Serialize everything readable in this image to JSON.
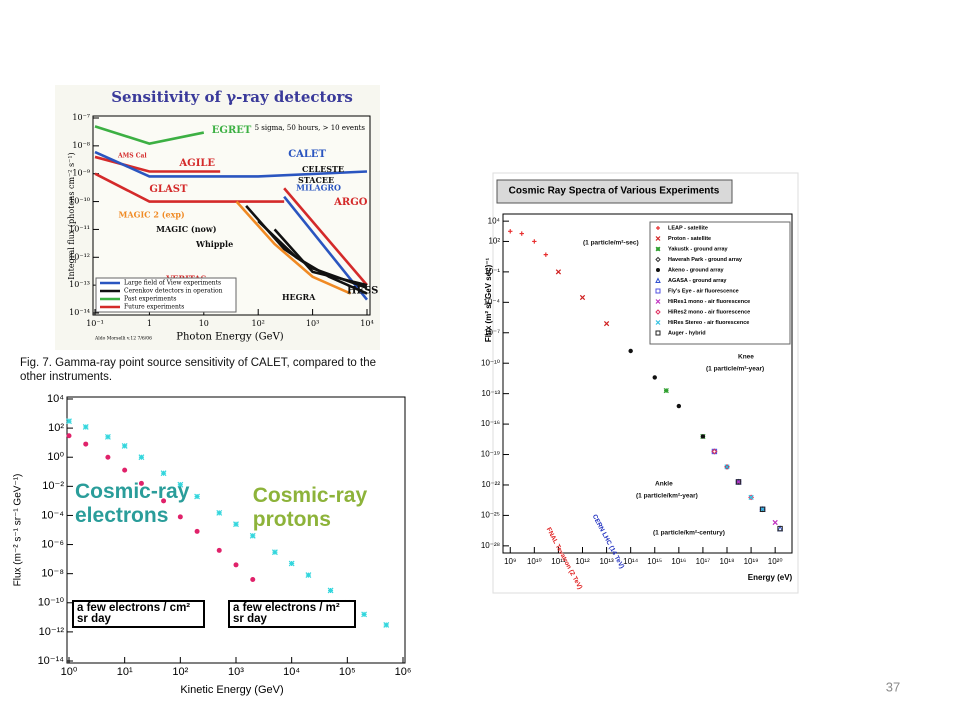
{
  "chart_data": [
    {
      "type": "line",
      "title": "Sensitivity of γ-ray detectors",
      "subtitle": "5 sigma, 50 hours, > 10 events",
      "x_label": "Photon Energy (GeV)",
      "y_label": "Integral flux (photons cm⁻² s⁻¹)",
      "credit": "Aldo Morselli v.12 7/6/06",
      "log_x": true,
      "log_y": true,
      "xlim": [
        0.1,
        10000
      ],
      "ylim": [
        1e-14,
        1e-07
      ],
      "xticks": [
        {
          "value": 0.1,
          "label": "10⁻¹"
        },
        1,
        10,
        {
          "value": 100,
          "label": "10²"
        },
        {
          "value": 1000,
          "label": "10³"
        },
        {
          "value": 10000,
          "label": "10⁴"
        }
      ],
      "yticks": [
        {
          "value": 1e-07,
          "label": "10⁻⁷"
        },
        {
          "value": 1e-08,
          "label": "10⁻⁸"
        },
        {
          "value": 1e-09,
          "label": "10⁻⁹"
        },
        {
          "value": 1e-10,
          "label": "10⁻¹⁰"
        },
        {
          "value": 1e-11,
          "label": "10⁻¹¹"
        },
        {
          "value": 1e-12,
          "label": "10⁻¹²"
        },
        {
          "value": 1e-13,
          "label": "10⁻¹³"
        },
        {
          "value": 1e-14,
          "label": "10⁻¹⁴"
        }
      ],
      "series": [
        {
          "name": "EGRET",
          "color": "#3cb043",
          "x": [
            0.1,
            1,
            10
          ],
          "values": [
            5e-08,
            1.2e-08,
            3e-08
          ]
        },
        {
          "name": "AGILE",
          "color": "#d42a2a",
          "x": [
            0.1,
            1,
            20
          ],
          "values": [
            4e-09,
            1.2e-09,
            1.2e-09
          ]
        },
        {
          "name": "CALET",
          "color": "#2a55c0",
          "x": [
            0.1,
            1,
            100,
            10000
          ],
          "values": [
            6e-09,
            8e-10,
            8e-10,
            1.2e-09
          ]
        },
        {
          "name": "GLAST",
          "color": "#d42a2a",
          "x": [
            0.1,
            1,
            300
          ],
          "values": [
            1e-09,
            1e-10,
            1e-10
          ]
        },
        {
          "name": "MILAGRO",
          "color": "#2a55c0",
          "x": [
            300,
            10000
          ],
          "values": [
            1.5e-10,
            3e-14
          ]
        },
        {
          "name": "ARGO",
          "color": "#d42a2a",
          "x": [
            300,
            10000
          ],
          "values": [
            3e-10,
            1e-13
          ]
        },
        {
          "name": "MAGIC 2 (exp)",
          "color": "#f08a24",
          "x": [
            40,
            200,
            1000,
            5000
          ],
          "values": [
            1e-10,
            3e-12,
            2e-13,
            5e-14
          ]
        },
        {
          "name": "MAGIC (now)",
          "color": "#111111",
          "x": [
            60,
            300,
            1000,
            10000
          ],
          "values": [
            7e-11,
            2e-12,
            4e-13,
            8e-14
          ]
        },
        {
          "name": "VERITAS",
          "color": "#111111",
          "label_color": "#d42a2a",
          "x": [
            100,
            500,
            2000,
            10000
          ],
          "values": [
            2e-11,
            1e-12,
            2e-13,
            5e-14
          ]
        },
        {
          "name": "HESS",
          "color": "#111111",
          "x": [
            200,
            1000,
            10000
          ],
          "values": [
            1e-11,
            3e-13,
            1e-13
          ]
        }
      ],
      "annotations": [
        "Whipple",
        "HEGRA",
        "CELESTE",
        "STACEE",
        "AMS Cal"
      ],
      "legend": [
        {
          "label": "Large field of View experiments",
          "color": "#2a55c0"
        },
        {
          "label": "Cerenkov detectors in operation",
          "color": "#111111"
        },
        {
          "label": "Past experiments",
          "color": "#3cb043"
        },
        {
          "label": "Future experiments",
          "color": "#d42a2a"
        }
      ]
    },
    {
      "type": "scatter",
      "x_label": "Kinetic Energy (GeV)",
      "y_label": "Flux (m⁻² s⁻¹ sr⁻¹ GeV⁻¹)",
      "log_x": true,
      "log_y": true,
      "xlim": [
        1,
        1000000
      ],
      "ylim": [
        1e-14,
        10000
      ],
      "xticks": [
        {
          "value": 1,
          "label": "10⁰"
        },
        {
          "value": 10,
          "label": "10¹"
        },
        {
          "value": 100,
          "label": "10²"
        },
        {
          "value": 1000,
          "label": "10³"
        },
        {
          "value": 10000,
          "label": "10⁴"
        },
        {
          "value": 100000,
          "label": "10⁵"
        },
        {
          "value": 1000000,
          "label": "10⁶"
        }
      ],
      "yticks": [
        {
          "value": 10000,
          "label": "10⁴"
        },
        {
          "value": 100,
          "label": "10²"
        },
        {
          "value": 1,
          "label": "10⁰"
        },
        {
          "value": 0.01,
          "label": "10⁻²"
        },
        {
          "value": 0.0001,
          "label": "10⁻⁴"
        },
        {
          "value": 1e-06,
          "label": "10⁻⁶"
        },
        {
          "value": 1e-08,
          "label": "10⁻⁸"
        },
        {
          "value": 1e-10,
          "label": "10⁻¹⁰"
        },
        {
          "value": 1e-12,
          "label": "10⁻¹²"
        },
        {
          "value": 1e-14,
          "label": "10⁻¹⁴"
        }
      ],
      "series": [
        {
          "name": "Cosmic-ray protons",
          "color": "#33d6dd",
          "label_color": "#8db33a",
          "marker": "star",
          "x": [
            1,
            2,
            5,
            10,
            20,
            50,
            100,
            200,
            500,
            1000,
            2000,
            5000,
            10000,
            20000,
            50000,
            100000,
            200000,
            500000
          ],
          "values": [
            300,
            120,
            25,
            6,
            1,
            0.08,
            0.013,
            0.002,
            0.00015,
            2.5e-05,
            4e-06,
            3e-07,
            5e-08,
            8e-09,
            7e-10,
            1e-10,
            1.6e-11,
            3e-12
          ]
        },
        {
          "name": "Cosmic-ray electrons",
          "color": "#e0226a",
          "label_color": "#2a9d9a",
          "marker": "circle",
          "x": [
            1,
            2,
            5,
            10,
            20,
            50,
            100,
            200,
            500,
            1000,
            2000
          ],
          "values": [
            30,
            8,
            1,
            0.13,
            0.016,
            0.001,
            8e-05,
            8e-06,
            4e-07,
            4e-08,
            4e-09
          ]
        }
      ],
      "annotations": [
        "a few electrons / cm² sr day",
        "a few electrons / m² sr day"
      ]
    },
    {
      "type": "scatter",
      "title": "Cosmic Ray Spectra of Various Experiments",
      "x_label": "Energy (eV)",
      "y_label": "Flux (m² sr GeV sec)⁻¹",
      "log_x": true,
      "log_y": true,
      "xlim": [
        500000000.0,
        5e+20
      ],
      "ylim": [
        1e-29,
        100000
      ],
      "xticks": [
        {
          "value": 1000000000.0,
          "label": "10⁹"
        },
        {
          "value": 10000000000.0,
          "label": "10¹⁰"
        },
        {
          "value": 100000000000.0,
          "label": "10¹¹"
        },
        {
          "value": 1000000000000.0,
          "label": "10¹²"
        },
        {
          "value": 10000000000000.0,
          "label": "10¹³"
        },
        {
          "value": 100000000000000.0,
          "label": "10¹⁴"
        },
        {
          "value": 1000000000000000.0,
          "label": "10¹⁵"
        },
        {
          "value": 1e+16,
          "label": "10¹⁶"
        },
        {
          "value": 1e+17,
          "label": "10¹⁷"
        },
        {
          "value": 1e+18,
          "label": "10¹⁸"
        },
        {
          "value": 1e+19,
          "label": "10¹⁹"
        },
        {
          "value": 1e+20,
          "label": "10²⁰"
        }
      ],
      "yticks": [
        {
          "value": 10000,
          "label": "10⁴"
        },
        {
          "value": 100,
          "label": "10²"
        },
        {
          "value": 0.1,
          "label": "10⁻¹"
        },
        {
          "value": 0.0001,
          "label": "10⁻⁴"
        },
        {
          "value": 1e-07,
          "label": "10⁻⁷"
        },
        {
          "value": 1e-10,
          "label": "10⁻¹⁰"
        },
        {
          "value": 1e-13,
          "label": "10⁻¹³"
        },
        {
          "value": 1e-16,
          "label": "10⁻¹⁶"
        },
        {
          "value": 1e-19,
          "label": "10⁻¹⁹"
        },
        {
          "value": 1e-22,
          "label": "10⁻²²"
        },
        {
          "value": 1e-25,
          "label": "10⁻²⁵"
        },
        {
          "value": 1e-28,
          "label": "10⁻²⁸"
        }
      ],
      "series": [
        {
          "name": "LEAP - satellite",
          "color": "#e83030",
          "marker": "plus",
          "x": [
            1000000000.0,
            3000000000.0,
            10000000000.0,
            30000000000.0
          ],
          "values": [
            1000,
            600,
            100,
            5
          ]
        },
        {
          "name": "Proton - satellite",
          "color": "#d02020",
          "marker": "x",
          "x": [
            100000000000.0,
            1000000000000.0,
            10000000000000.0
          ],
          "values": [
            0.1,
            0.0003,
            8e-07
          ]
        },
        {
          "name": "Yakustk - ground array",
          "color": "#30a030",
          "marker": "star",
          "x": [
            3000000000000000.0,
            1e+17,
            3e+18
          ],
          "values": [
            2e-13,
            6e-18,
            2e-22
          ]
        },
        {
          "name": "Haverah Park - ground array",
          "color": "#333333",
          "marker": "diamond",
          "x": [
            3e+17,
            3e+18,
            3e+19
          ],
          "values": [
            2e-19,
            2e-22,
            4e-25
          ]
        },
        {
          "name": "Akeno - ground array",
          "color": "#111111",
          "marker": "circle",
          "x": [
            100000000000000.0,
            1000000000000000.0,
            1e+16,
            1e+17,
            1e+18
          ],
          "values": [
            1.6e-09,
            4e-12,
            6e-15,
            6e-18,
            6e-21
          ]
        },
        {
          "name": "AGASA - ground array",
          "color": "#3050d0",
          "marker": "triangle",
          "x": [
            3e+18,
            3e+19,
            1.6e+20
          ],
          "values": [
            2e-22,
            4e-25,
            5e-27
          ]
        },
        {
          "name": "Fly's Eye - air fluorescence",
          "color": "#5050e0",
          "marker": "square",
          "x": [
            3e+17,
            3e+18,
            3e+19
          ],
          "values": [
            2e-19,
            2e-22,
            4e-25
          ]
        },
        {
          "name": "HiRes1 mono - air fluorescence",
          "color": "#c030c0",
          "marker": "x",
          "x": [
            3e+18,
            3e+19,
            1e+20
          ],
          "values": [
            2e-22,
            4e-25,
            2e-26
          ]
        },
        {
          "name": "HiRes2 mono - air fluorescence",
          "color": "#e03060",
          "marker": "diamond",
          "x": [
            3e+17,
            1e+18,
            1e+19
          ],
          "values": [
            2e-19,
            6e-21,
            6e-24
          ]
        },
        {
          "name": "HiRes Stereo - air fluorescence",
          "color": "#30c0e0",
          "marker": "x",
          "x": [
            1e+18,
            1e+19,
            3e+19
          ],
          "values": [
            6e-21,
            6e-24,
            4e-25
          ]
        },
        {
          "name": "Auger - hybrid",
          "color": "#222222",
          "marker": "square",
          "x": [
            3e+18,
            3e+19,
            1.6e+20
          ],
          "values": [
            2e-22,
            4e-25,
            5e-27
          ]
        }
      ],
      "annotations": [
        "(1 particle/m²-sec)",
        "Knee",
        "(1 particle/m²-year)",
        "Ankle",
        "(1 particle/km²-year)",
        "(1 particle/km²-century)",
        "FNAL Tevatron (2 TeV)",
        "CERN LHC (14 TeV)"
      ]
    }
  ],
  "caption": "Fig. 7.  Gamma-ray point source sensitivity of CALET, compared to the other instruments.",
  "page_number": "37"
}
